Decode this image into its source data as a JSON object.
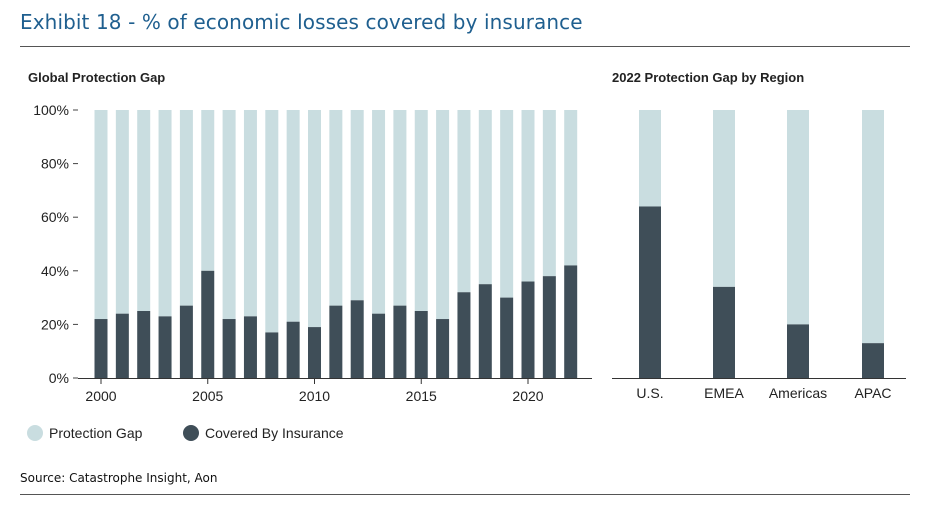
{
  "exhibit_title": "Exhibit 18 - % of economic losses covered by insurance",
  "source": "Source: Catastrophe Insight, Aon",
  "colors": {
    "protection_gap": "#c9dde0",
    "covered": "#3f4e58",
    "title": "#1f5f8f"
  },
  "legend": {
    "protection_gap": "Protection Gap",
    "covered": "Covered By Insurance"
  },
  "chart_data": [
    {
      "type": "bar",
      "stacked": true,
      "title": "Global Protection Gap",
      "years": [
        2000,
        2001,
        2002,
        2003,
        2004,
        2005,
        2006,
        2007,
        2008,
        2009,
        2010,
        2011,
        2012,
        2013,
        2014,
        2015,
        2016,
        2017,
        2018,
        2019,
        2020,
        2021,
        2022
      ],
      "x_tick_labels": [
        "2000",
        "2005",
        "2010",
        "2015",
        "2020"
      ],
      "y_tick_labels": [
        "100%",
        "80%",
        "60%",
        "40%",
        "20%",
        "0%"
      ],
      "ylim": [
        0,
        100
      ],
      "series": [
        {
          "name": "Covered By Insurance",
          "values": [
            22,
            24,
            25,
            23,
            27,
            40,
            22,
            23,
            17,
            21,
            19,
            27,
            29,
            24,
            27,
            25,
            22,
            32,
            35,
            30,
            36,
            38,
            42
          ]
        },
        {
          "name": "Protection Gap",
          "values": [
            78,
            76,
            75,
            77,
            73,
            60,
            78,
            77,
            83,
            79,
            81,
            73,
            71,
            76,
            73,
            75,
            78,
            68,
            65,
            70,
            64,
            62,
            58
          ]
        }
      ]
    },
    {
      "type": "bar",
      "stacked": true,
      "title": "2022 Protection Gap by Region",
      "categories": [
        "U.S.",
        "EMEA",
        "Americas",
        "APAC"
      ],
      "ylim": [
        0,
        100
      ],
      "series": [
        {
          "name": "Covered By Insurance",
          "values": [
            64,
            34,
            20,
            13
          ]
        },
        {
          "name": "Protection Gap",
          "values": [
            36,
            66,
            80,
            87
          ]
        }
      ]
    }
  ]
}
